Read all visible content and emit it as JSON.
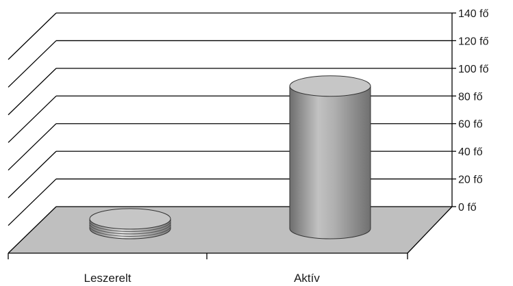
{
  "chart_data": {
    "type": "bar",
    "style": "3d-cylinder",
    "categories": [
      "Leszerelt",
      "Aktív"
    ],
    "values": [
      7,
      103
    ],
    "ylim": [
      0,
      140
    ],
    "yticks": [
      0,
      20,
      40,
      60,
      80,
      100,
      120,
      140
    ],
    "ytick_labels": [
      "0 fő",
      "20 fő",
      "40 fő",
      "60 fő",
      "80 fő",
      "100 fő",
      "120 fő",
      "140 fő"
    ],
    "y_axis_position": "right",
    "grid": true,
    "legend": "none",
    "colors": {
      "floor": "#bfbfbf",
      "cylinder_body": "#9c9c9c",
      "cylinder_top": "#c6c6c6",
      "gridline": "#000000"
    }
  }
}
